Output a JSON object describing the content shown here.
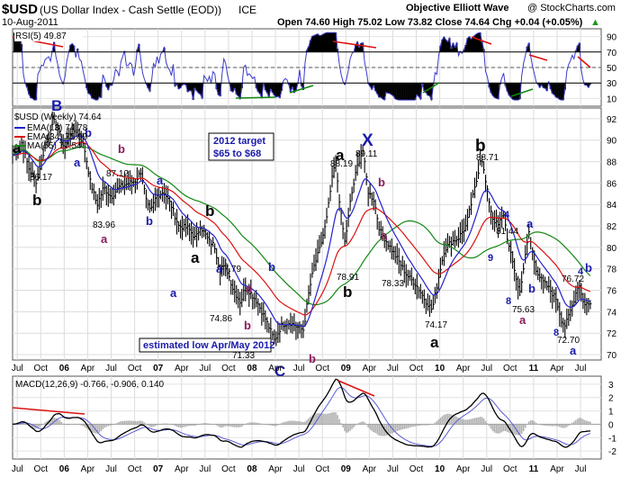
{
  "header": {
    "symbol": "$USD",
    "name": "(US Dollar Index - Cash Settle (EOD))",
    "exchange": "ICE",
    "date": "10-Aug-2011",
    "brand": "Objective Elliott Wave",
    "brand_suffix": "@ StockCharts.com",
    "quote": "Open 74.60  High 75.02  Low 73.82  Close 74.64  Chg +0.04 (+0.05%)",
    "quote_arrow": "▲"
  },
  "rsi_panel": {
    "label": "RSI(5) 49.87",
    "ticks": [
      "90",
      "70",
      "50",
      "30",
      "10"
    ]
  },
  "price_panel": {
    "label": "$USD (Weekly) 74.64",
    "legend": [
      {
        "text": "EMA(13) 74.78",
        "color": "#2222cc"
      },
      {
        "text": "EMA(34) 75.99",
        "color": "#dd1111"
      },
      {
        "text": "MA(55) 77.54",
        "color": "#118811"
      }
    ],
    "ticks": [
      "92",
      "90",
      "88",
      "86",
      "84",
      "82",
      "80",
      "78",
      "76",
      "74",
      "72",
      "70"
    ],
    "target_box": {
      "line1": "2012 target",
      "line2": "$65 to $68"
    },
    "estimate_box": "estimated low Apr/May 2012"
  },
  "macd_panel": {
    "label": "MACD(12,26,9) -0.766, -0.906, 0.140",
    "ticks": [
      "3",
      "2",
      "1",
      "0",
      "-1",
      "-2"
    ]
  },
  "x_axis_labels": [
    "Jul",
    "Oct",
    "06",
    "Apr",
    "Jul",
    "Oct",
    "07",
    "Apr",
    "Jul",
    "Oct",
    "08",
    "Apr",
    "Jul",
    "Oct",
    "09",
    "Apr",
    "Jul",
    "Oct",
    "10",
    "Apr",
    "Jul",
    "Oct",
    "11",
    "Apr",
    "Jul"
  ],
  "wave_labels": [
    {
      "t": "a",
      "color": "#000000",
      "size": 17
    },
    {
      "t": "B",
      "color": "#1a1aaa",
      "size": 17
    },
    {
      "t": "b",
      "color": "#1a1aaa",
      "size": 13
    },
    {
      "t": "b",
      "color": "#000000",
      "size": 17
    },
    {
      "t": "a",
      "color": "#1a1aaa",
      "size": 13
    },
    {
      "t": "a",
      "color": "#8b1a5c",
      "size": 13
    },
    {
      "t": "b",
      "color": "#8b1a5c",
      "size": 13
    },
    {
      "t": "a",
      "color": "#1a1aaa",
      "size": 13
    },
    {
      "t": "b",
      "color": "#000000",
      "size": 17
    },
    {
      "t": "a",
      "color": "#000000",
      "size": 17
    },
    {
      "t": "b",
      "color": "#1a1aaa",
      "size": 13
    },
    {
      "t": "a",
      "color": "#1a1aaa",
      "size": 13
    },
    {
      "t": "a",
      "color": "#8b1a5c",
      "size": 13
    },
    {
      "t": "b",
      "color": "#8b1a5c",
      "size": 13
    },
    {
      "t": "a",
      "color": "#1a1aaa",
      "size": 13
    },
    {
      "t": "b",
      "color": "#1a1aaa",
      "size": 13
    },
    {
      "t": "b",
      "color": "#8b1a5c",
      "size": 13
    },
    {
      "t": "C",
      "color": "#1a1aaa",
      "size": 17
    },
    {
      "t": "a",
      "color": "#000000",
      "size": 17
    },
    {
      "t": "X",
      "color": "#1a1aaa",
      "size": 19
    },
    {
      "t": "b",
      "color": "#8b1a5c",
      "size": 13
    },
    {
      "t": "b",
      "color": "#000000",
      "size": 17
    },
    {
      "t": "a",
      "color": "#8b1a5c",
      "size": 13
    },
    {
      "t": "a",
      "color": "#000000",
      "size": 17
    },
    {
      "t": "b",
      "color": "#000000",
      "size": 19
    },
    {
      "t": "4",
      "color": "#1a1aaa",
      "size": 11
    },
    {
      "t": "9",
      "color": "#1a1aaa",
      "size": 11
    },
    {
      "t": "a",
      "color": "#1a1aaa",
      "size": 13
    },
    {
      "t": "8",
      "color": "#1a1aaa",
      "size": 11
    },
    {
      "t": "a",
      "color": "#8b1a5c",
      "size": 13
    },
    {
      "t": "b",
      "color": "#1a1aaa",
      "size": 13
    },
    {
      "t": "4",
      "color": "#1a1aaa",
      "size": 11
    },
    {
      "t": "b",
      "color": "#1a1aaa",
      "size": 13
    },
    {
      "t": "8",
      "color": "#1a1aaa",
      "size": 11
    },
    {
      "t": "a",
      "color": "#1a1aaa",
      "size": 13
    }
  ],
  "price_labels": [
    {
      "t": "86.17",
      "v": 86.17
    },
    {
      "t": "83.96",
      "v": 83.96
    },
    {
      "t": "87.12",
      "v": 87.12
    },
    {
      "t": "77.79",
      "v": 77.79
    },
    {
      "t": "74.86",
      "v": 74.86
    },
    {
      "t": "71.33",
      "v": 71.33
    },
    {
      "t": "88.19",
      "v": 88.19
    },
    {
      "t": "89.11",
      "v": 89.11
    },
    {
      "t": "78.91",
      "v": 78.91
    },
    {
      "t": "78.33",
      "v": 78.33
    },
    {
      "t": "74.17",
      "v": 74.17
    },
    {
      "t": "88.71",
      "v": 88.71
    },
    {
      "t": "81.44",
      "v": 81.44
    },
    {
      "t": "75.63",
      "v": 75.63
    },
    {
      "t": "76.72",
      "v": 76.72
    },
    {
      "t": "72.70",
      "v": 72.7
    }
  ],
  "chart_data": {
    "type": "line",
    "title": "$USD (US Dollar Index - Cash Settle (EOD))",
    "ylim": [
      69.5,
      93
    ],
    "xlim": [
      2005.45,
      2011.72
    ],
    "grid": true,
    "series": [
      {
        "name": "$USD (Weekly)",
        "color": "#000000",
        "points": [
          [
            2005.45,
            88.6
          ],
          [
            2005.55,
            89.8
          ],
          [
            2005.62,
            87.4
          ],
          [
            2005.7,
            86.17
          ],
          [
            2005.8,
            89.5
          ],
          [
            2005.9,
            91.9
          ],
          [
            2006.0,
            89.2
          ],
          [
            2006.07,
            90.8
          ],
          [
            2006.15,
            90.9
          ],
          [
            2006.22,
            89.0
          ],
          [
            2006.28,
            86.0
          ],
          [
            2006.35,
            83.96
          ],
          [
            2006.42,
            85.6
          ],
          [
            2006.5,
            84.7
          ],
          [
            2006.58,
            85.6
          ],
          [
            2006.66,
            85.9
          ],
          [
            2006.76,
            86.2
          ],
          [
            2006.82,
            87.12
          ],
          [
            2006.88,
            84.0
          ],
          [
            2006.92,
            83.3
          ],
          [
            2006.98,
            84.8
          ],
          [
            2007.06,
            85.2
          ],
          [
            2007.14,
            83.9
          ],
          [
            2007.22,
            82.0
          ],
          [
            2007.32,
            81.8
          ],
          [
            2007.4,
            80.8
          ],
          [
            2007.45,
            82.0
          ],
          [
            2007.55,
            80.5
          ],
          [
            2007.6,
            80.2
          ],
          [
            2007.66,
            77.79
          ],
          [
            2007.72,
            78.3
          ],
          [
            2007.8,
            76.1
          ],
          [
            2007.88,
            74.86
          ],
          [
            2007.93,
            76.4
          ],
          [
            2007.98,
            75.8
          ],
          [
            2008.05,
            75.0
          ],
          [
            2008.15,
            73.2
          ],
          [
            2008.24,
            71.33
          ],
          [
            2008.32,
            72.8
          ],
          [
            2008.4,
            73.0
          ],
          [
            2008.48,
            72.6
          ],
          [
            2008.55,
            72.3
          ],
          [
            2008.6,
            75.5
          ],
          [
            2008.66,
            78.2
          ],
          [
            2008.72,
            79.8
          ],
          [
            2008.79,
            82.3
          ],
          [
            2008.85,
            86.2
          ],
          [
            2008.89,
            88.19
          ],
          [
            2008.94,
            83.6
          ],
          [
            2008.99,
            80.4
          ],
          [
            2009.05,
            84.4
          ],
          [
            2009.12,
            87.5
          ],
          [
            2009.18,
            89.11
          ],
          [
            2009.24,
            85.1
          ],
          [
            2009.3,
            84.4
          ],
          [
            2009.36,
            81.6
          ],
          [
            2009.45,
            80.3
          ],
          [
            2009.55,
            78.9
          ],
          [
            2009.65,
            77.4
          ],
          [
            2009.75,
            76.5
          ],
          [
            2009.85,
            75.0
          ],
          [
            2009.92,
            74.17
          ],
          [
            2009.98,
            76.9
          ],
          [
            2010.05,
            79.8
          ],
          [
            2010.12,
            80.5
          ],
          [
            2010.2,
            80.9
          ],
          [
            2010.28,
            82.0
          ],
          [
            2010.35,
            84.6
          ],
          [
            2010.4,
            86.5
          ],
          [
            2010.44,
            88.71
          ],
          [
            2010.49,
            86.0
          ],
          [
            2010.56,
            82.8
          ],
          [
            2010.62,
            82.0
          ],
          [
            2010.68,
            83.2
          ],
          [
            2010.73,
            80.3
          ],
          [
            2010.8,
            77.8
          ],
          [
            2010.85,
            75.63
          ],
          [
            2010.9,
            78.5
          ],
          [
            2010.95,
            81.44
          ],
          [
            2011.02,
            78.1
          ],
          [
            2011.08,
            77.0
          ],
          [
            2011.16,
            76.2
          ],
          [
            2011.24,
            75.2
          ],
          [
            2011.3,
            73.1
          ],
          [
            2011.34,
            72.7
          ],
          [
            2011.42,
            74.8
          ],
          [
            2011.48,
            76.72
          ],
          [
            2011.54,
            74.6
          ],
          [
            2011.58,
            74.9
          ],
          [
            2011.61,
            74.64
          ]
        ]
      }
    ]
  }
}
